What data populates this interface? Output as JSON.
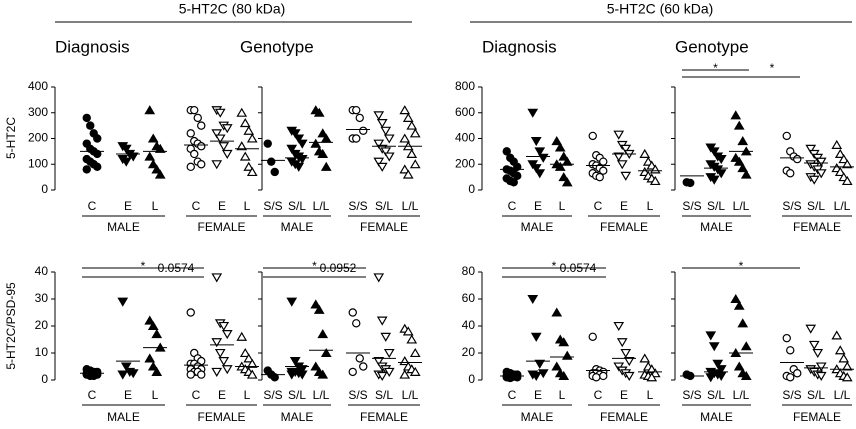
{
  "headers": [
    "5-HT2C (80 kDa)",
    "5-HT2C (60 kDa)"
  ],
  "chart_data": [
    {
      "type": "strip",
      "title": "Diagnosis",
      "ylabel": "5-HT2C",
      "ylim": [
        0,
        400
      ],
      "yticks": [
        0,
        100,
        200,
        300,
        400
      ],
      "categories": [
        "C",
        "E",
        "L",
        "C",
        "E",
        "L"
      ],
      "groups": [
        "MALE",
        "FEMALE"
      ],
      "points": [
        [
          280,
          250,
          220,
          200,
          180,
          160,
          150,
          140,
          120,
          110,
          100,
          90,
          80
        ],
        [
          170,
          160,
          140,
          130,
          120,
          110
        ],
        [
          310,
          200,
          170,
          160,
          130,
          100,
          80,
          60
        ],
        [
          310,
          310,
          280,
          250,
          220,
          190,
          180,
          170,
          160,
          140,
          110,
          100,
          90
        ],
        [
          310,
          300,
          250,
          240,
          220,
          200,
          170,
          140,
          100
        ],
        [
          300,
          260,
          230,
          200,
          170,
          130,
          90,
          70
        ]
      ],
      "means": [
        150,
        140,
        150,
        175,
        190,
        160
      ],
      "annotations": []
    },
    {
      "type": "strip",
      "title": "Genotype",
      "ylim": [
        0,
        400
      ],
      "yticks": [
        0,
        100,
        200,
        300,
        400
      ],
      "categories": [
        "S/S",
        "S/L",
        "L/L",
        "S/S",
        "S/L",
        "L/L"
      ],
      "groups": [
        "MALE",
        "FEMALE"
      ],
      "points": [
        [
          180,
          110,
          70
        ],
        [
          230,
          220,
          200,
          180,
          160,
          140,
          130,
          120,
          110,
          100,
          90
        ],
        [
          310,
          300,
          220,
          200,
          180,
          150,
          140,
          90
        ],
        [
          310,
          310,
          280,
          230,
          200,
          200
        ],
        [
          290,
          260,
          230,
          200,
          180,
          160,
          150,
          130,
          110,
          90
        ],
        [
          310,
          280,
          250,
          220,
          200,
          170,
          140,
          100,
          80,
          60
        ]
      ],
      "means": [
        115,
        125,
        185,
        235,
        170,
        170
      ],
      "annotations": []
    },
    {
      "type": "strip",
      "title": "Diagnosis",
      "ylim": [
        0,
        800
      ],
      "yticks": [
        0,
        200,
        400,
        600,
        800
      ],
      "categories": [
        "C",
        "E",
        "L",
        "C",
        "E",
        "L"
      ],
      "groups": [
        "MALE",
        "FEMALE"
      ],
      "points": [
        [
          300,
          250,
          220,
          180,
          160,
          150,
          130,
          110,
          90,
          70,
          60
        ],
        [
          600,
          380,
          300,
          250,
          200,
          170,
          130
        ],
        [
          380,
          330,
          260,
          220,
          200,
          180,
          100,
          60
        ],
        [
          420,
          270,
          250,
          220,
          200,
          190,
          170,
          150,
          130,
          110,
          100
        ],
        [
          430,
          350,
          320,
          280,
          260,
          200,
          110
        ],
        [
          280,
          220,
          190,
          160,
          140,
          110,
          90,
          70
        ]
      ],
      "means": [
        160,
        260,
        200,
        190,
        280,
        150
      ],
      "annotations": []
    },
    {
      "type": "strip",
      "title": "Genotype",
      "ylim": [
        0,
        800
      ],
      "yticks": [
        0,
        200,
        400,
        600,
        800
      ],
      "categories": [
        "S/S",
        "S/L",
        "L/L",
        "S/S",
        "S/L",
        "L/L"
      ],
      "groups": [
        "MALE",
        "FEMALE"
      ],
      "points": [
        [
          60,
          55
        ],
        [
          330,
          300,
          260,
          240,
          200,
          180,
          160,
          130,
          100,
          80
        ],
        [
          580,
          500,
          380,
          300,
          250,
          220,
          170,
          120
        ],
        [
          420,
          300,
          260,
          240,
          150,
          130
        ],
        [
          320,
          280,
          250,
          220,
          200,
          180,
          160,
          130,
          100,
          80
        ],
        [
          350,
          280,
          240,
          200,
          170,
          140,
          100,
          70
        ]
      ],
      "means": [
        110,
        170,
        300,
        250,
        210,
        180
      ],
      "annotations": [
        {
          "from": 0,
          "to": 2,
          "label": "*"
        },
        {
          "from": 0,
          "to": 3,
          "label": "*"
        }
      ]
    },
    {
      "type": "strip",
      "ylabel": "5-HT2C/PSD-95",
      "ylim": [
        0,
        40
      ],
      "yticks": [
        0,
        10,
        20,
        30,
        40
      ],
      "categories": [
        "C",
        "E",
        "L",
        "C",
        "E",
        "L"
      ],
      "groups": [
        "MALE",
        "FEMALE"
      ],
      "points": [
        [
          4,
          3.5,
          3,
          3,
          2.5,
          2.5,
          2,
          2,
          2,
          1.5,
          1.5
        ],
        [
          29,
          5,
          3,
          2.5,
          2
        ],
        [
          22,
          20,
          17,
          12,
          8,
          5,
          3
        ],
        [
          25,
          10,
          8,
          7,
          6,
          6,
          5,
          4,
          4,
          3,
          3,
          2,
          2
        ],
        [
          38,
          21,
          20,
          17,
          14,
          10,
          7,
          4,
          3
        ],
        [
          16,
          10,
          8,
          6,
          5,
          4,
          3,
          2
        ]
      ],
      "means": [
        2.5,
        7,
        12,
        5.5,
        13,
        5
      ],
      "annotations": [
        {
          "from": 0,
          "to": 3,
          "label": "*"
        },
        {
          "from": 0,
          "to": 3,
          "label": "0.0574"
        }
      ]
    },
    {
      "type": "strip",
      "ylim": [
        0,
        40
      ],
      "yticks": [
        0,
        10,
        20,
        30,
        40
      ],
      "categories": [
        "S/S",
        "S/L",
        "L/L",
        "S/S",
        "S/L",
        "L/L"
      ],
      "groups": [
        "MALE",
        "FEMALE"
      ],
      "points": [
        [
          3.5,
          2,
          1
        ],
        [
          29,
          7,
          5,
          4,
          3,
          3,
          2.5,
          2,
          2
        ],
        [
          28,
          26,
          17,
          10,
          5,
          3,
          2
        ],
        [
          25,
          21,
          8,
          5,
          3
        ],
        [
          38,
          22,
          16,
          10,
          7,
          5,
          4,
          3,
          2,
          1.5
        ],
        [
          19,
          18,
          15,
          10,
          7,
          5,
          4,
          3,
          2
        ]
      ],
      "means": [
        2,
        5,
        11,
        10,
        8,
        6.5
      ],
      "annotations": [
        {
          "from": 0,
          "to": 3,
          "label": "*"
        },
        {
          "from": 0,
          "to": 3,
          "label": "0.0952"
        }
      ]
    },
    {
      "type": "strip",
      "ylim": [
        0,
        80
      ],
      "yticks": [
        0,
        20,
        40,
        60,
        80
      ],
      "categories": [
        "C",
        "E",
        "L",
        "C",
        "E",
        "L"
      ],
      "groups": [
        "MALE",
        "FEMALE"
      ],
      "points": [
        [
          6,
          5,
          4,
          4,
          3,
          3,
          2.5,
          2,
          2,
          1.5
        ],
        [
          60,
          32,
          12,
          5,
          4,
          3
        ],
        [
          50,
          30,
          28,
          18,
          10,
          5,
          3
        ],
        [
          32,
          8,
          7,
          6,
          5,
          5,
          4,
          3,
          3,
          2
        ],
        [
          40,
          28,
          20,
          14,
          10,
          7,
          5,
          3
        ],
        [
          16,
          10,
          8,
          5,
          4,
          3,
          2
        ]
      ],
      "means": [
        3,
        14,
        17,
        7,
        16,
        6
      ],
      "annotations": [
        {
          "from": 0,
          "to": 3,
          "label": "*"
        },
        {
          "from": 0,
          "to": 3,
          "label": "0.0574"
        }
      ]
    },
    {
      "type": "strip",
      "ylim": [
        0,
        80
      ],
      "yticks": [
        0,
        20,
        40,
        60,
        80
      ],
      "categories": [
        "S/S",
        "S/L",
        "L/L",
        "S/S",
        "S/L",
        "L/L"
      ],
      "groups": [
        "MALE",
        "FEMALE"
      ],
      "points": [
        [
          4,
          3
        ],
        [
          33,
          25,
          12,
          8,
          6,
          5,
          4,
          3,
          2
        ],
        [
          60,
          55,
          42,
          25,
          20,
          10,
          5,
          3
        ],
        [
          31,
          22,
          8,
          5,
          3,
          2
        ],
        [
          38,
          26,
          20,
          10,
          8,
          6,
          4,
          3
        ],
        [
          33,
          22,
          16,
          10,
          8,
          5,
          3,
          2
        ]
      ],
      "means": [
        3,
        6,
        20,
        13,
        9,
        8
      ],
      "annotations": [
        {
          "from": 0,
          "to": 3,
          "label": "*"
        }
      ]
    }
  ]
}
